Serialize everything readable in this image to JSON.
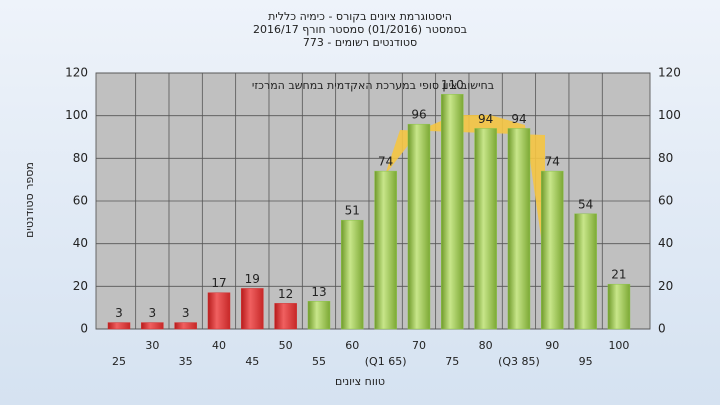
{
  "chart_data": {
    "type": "bar",
    "title": "היסטוגרמת ציונים בקורס - כימיה כללית",
    "subtitle": "בסמסטר (01/2016) סמסטר חורף 2016/17",
    "subtitle2": "סטודנטים רשומים - 773",
    "annotation": "בחישוב ציון סופי במערכת האקדמית במחשב המרכזי",
    "y_label": "מספר סטודנטים",
    "x_label": "טווח ציונים",
    "categories": [
      "25",
      "30",
      "35",
      "40",
      "45",
      "50",
      "55",
      "60",
      "(Q1 65)",
      "70",
      "75",
      "80",
      "(Q3 85)",
      "90",
      "95",
      "100"
    ],
    "values": [
      3,
      3,
      3,
      17,
      19,
      12,
      13,
      51,
      74,
      96,
      110,
      94,
      94,
      74,
      54,
      21
    ],
    "bar_colors": [
      "#d32f2f",
      "#d32f2f",
      "#d32f2f",
      "#d32f2f",
      "#d32f2f",
      "#d32f2f",
      "#8bc34a",
      "#8bc34a",
      "#8bc34a",
      "#8bc34a",
      "#8bc34a",
      "#8bc34a",
      "#8bc34a",
      "#8bc34a",
      "#8bc34a",
      "#8bc34a"
    ],
    "ylim": [
      0,
      120
    ],
    "yticks": [
      0,
      20,
      40,
      60,
      80,
      100,
      120
    ],
    "grid": true
  }
}
